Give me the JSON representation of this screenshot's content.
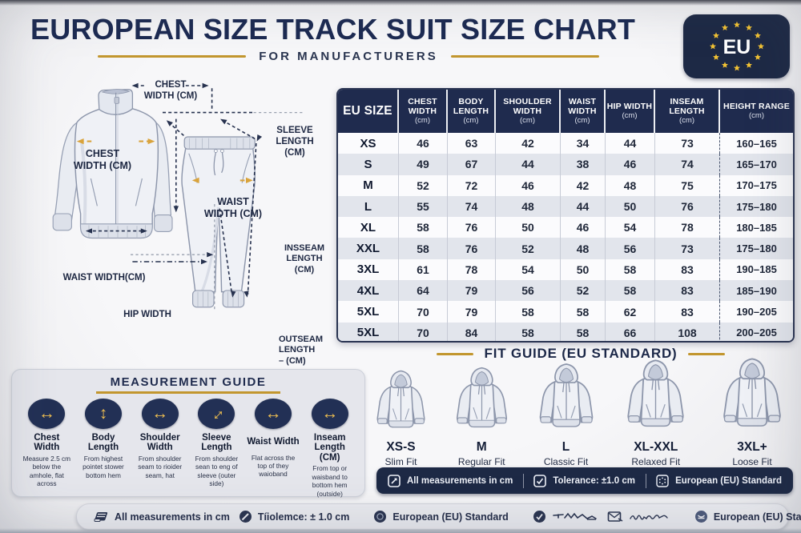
{
  "header": {
    "title": "EUROPEAN SIZE TRACK SUIT SIZE CHART",
    "subtitle": "FOR MANUFACTURERS",
    "badge_text": "EU"
  },
  "colors": {
    "navy": "#1f2b4e",
    "gold_accent": "#d9a33b",
    "gold_line": "#c2962e",
    "row_alt": "#e2e5ec"
  },
  "diagram": {
    "chest_width_top": "CHEST\nWIDTH (CM)",
    "sleeve_length": "SLEEVE\nLENGTH\n(CM)",
    "chest_width_jacket": "CHEST\nWIDTH (CM)",
    "waist_width_pants": "WAIST\nWIDTH (CM)",
    "waist_width_jacket": "WAIST WIDTH(CM)",
    "hip_width": "HIP WIDTH",
    "inseam_length": "INSSEAM\nLENGTH\n(CM)",
    "outseam_length": "OUTSEAM\nLENGTH\n–  (CM)"
  },
  "size_table": {
    "columns": [
      {
        "label": "EU SIZE",
        "unit": ""
      },
      {
        "label": "CHEST WIDTH",
        "unit": "(cm)"
      },
      {
        "label": "BODY LENGTH",
        "unit": "(cm)"
      },
      {
        "label": "SHOULDER WIDTH",
        "unit": "(cm)"
      },
      {
        "label": "WAIST WIDTH",
        "unit": "(cm)"
      },
      {
        "label": "HIP WIDTH",
        "unit": "(cm)"
      },
      {
        "label": "INSEAM LENGTH",
        "unit": "(cm)"
      },
      {
        "label": "HEIGHT RANGE",
        "unit": "(cm)"
      }
    ],
    "rows": [
      {
        "size": "XS",
        "values": [
          "46",
          "63",
          "42",
          "34",
          "44",
          "73",
          "160–165"
        ]
      },
      {
        "size": "S",
        "values": [
          "49",
          "67",
          "44",
          "38",
          "46",
          "74",
          "165–170"
        ]
      },
      {
        "size": "M",
        "values": [
          "52",
          "72",
          "46",
          "42",
          "48",
          "75",
          "170–175"
        ]
      },
      {
        "size": "L",
        "values": [
          "55",
          "74",
          "48",
          "44",
          "50",
          "76",
          "175–180"
        ]
      },
      {
        "size": "XL",
        "values": [
          "58",
          "76",
          "50",
          "46",
          "54",
          "78",
          "180–185"
        ]
      },
      {
        "size": "XXL",
        "values": [
          "58",
          "76",
          "52",
          "48",
          "56",
          "73",
          "175–180"
        ]
      },
      {
        "size": "3XL",
        "values": [
          "61",
          "78",
          "54",
          "50",
          "58",
          "83",
          "190–185"
        ]
      },
      {
        "size": "4XL",
        "values": [
          "64",
          "79",
          "56",
          "52",
          "58",
          "83",
          "185–190"
        ]
      },
      {
        "size": "5XL",
        "values": [
          "70",
          "79",
          "58",
          "58",
          "62",
          "83",
          "190–205"
        ]
      },
      {
        "size": "5XL",
        "values": [
          "70",
          "84",
          "58",
          "58",
          "66",
          "108",
          "200–205"
        ]
      }
    ]
  },
  "measurement_guide": {
    "title": "MEASUREMENT GUIDE",
    "items": [
      {
        "icon": "horizontal-arrow-icon",
        "label": "Chest Width",
        "desc": "Measure 2.5 cm below the amhole, flat across"
      },
      {
        "icon": "vertical-arrow-icon",
        "label": "Body Length",
        "desc": "From highest pointet stower bottom hem"
      },
      {
        "icon": "horizontal-arrow-icon",
        "label": "Shoulder Width",
        "desc": "From shoulder seam to rioider seam, hat"
      },
      {
        "icon": "diagonal-arrow-icon",
        "label": "Sleeve Length",
        "desc": "From shoulder sean to eng of sleeve (outer side)"
      },
      {
        "icon": "horizontal-arrow-icon",
        "label": "Waist Width",
        "desc": "Flat across the top of they waioband"
      },
      {
        "icon": "horizontal-arrow-icon",
        "label": "Inseam Length (CM)",
        "desc": "From top or waisband to bottom hem (outside)"
      }
    ]
  },
  "fit_guide": {
    "title": "FIT GUIDE  (EU STANDARD)",
    "items": [
      {
        "size": "XS-S",
        "fit": "Slim Fit"
      },
      {
        "size": "M",
        "fit": "Regular Fit"
      },
      {
        "size": "L",
        "fit": "Classic Fit"
      },
      {
        "size": "XL-XXL",
        "fit": "Relaxed Fit"
      },
      {
        "size": "3XL+",
        "fit": "Loose Fit"
      }
    ]
  },
  "info_bar": {
    "items": [
      {
        "icon": "measure-arrow-icon",
        "label": "All measurements in cm"
      },
      {
        "icon": "check-box-icon",
        "label": "Tolerance: ±1.0 cm"
      },
      {
        "icon": "eu-stars-icon",
        "label": "European (EU) Standard"
      }
    ]
  },
  "footer_bar": {
    "measurements_label": "All measurements in cm",
    "tolerance_label": "Tíiolemce: ± 1.0 cm",
    "standard_label": "European (EU) Standard",
    "standard_label_2": "European (EU) Standard"
  }
}
